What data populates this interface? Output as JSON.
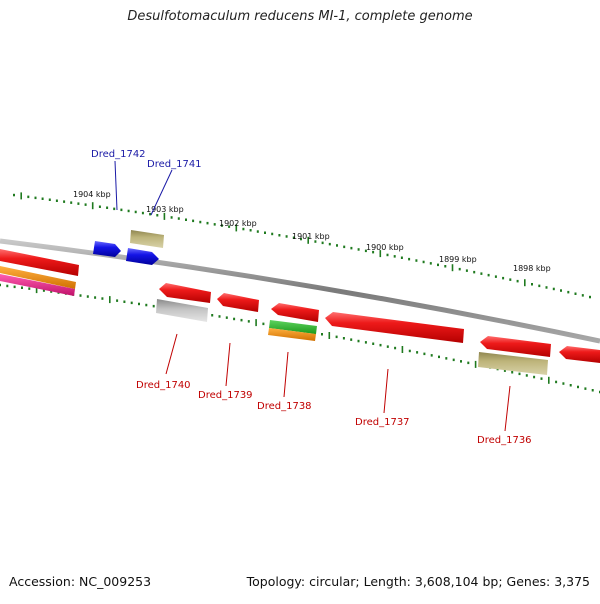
{
  "title": "Desulfotomaculum reducens MI-1, complete genome",
  "footer": {
    "accession": "Accession: NC_009253",
    "stats": "Topology: circular; Length: 3,608,104 bp; Genes: 3,375"
  },
  "scale_labels": [
    "1904 kbp",
    "1903 kbp",
    "1902 kbp",
    "1901 kbp",
    "1900 kbp",
    "1899 kbp",
    "1898 kbp"
  ],
  "colors": {
    "backbone": "#8a8a8a",
    "tick": "#1f7a1f",
    "plus_label": "#1a1aa6",
    "minus_label": "#c00000",
    "red": "#e8161b",
    "blue": "#1010e0",
    "olive": "#b5ad74",
    "gray": "#bdbdbd",
    "green": "#33bb33",
    "orange": "#f08c00",
    "magenta": "#e8208a"
  },
  "genes_top": [
    {
      "label": "Dred_1742"
    },
    {
      "label": "Dred_1741"
    }
  ],
  "genes_bottom": [
    {
      "label": "Dred_1740"
    },
    {
      "label": "Dred_1739"
    },
    {
      "label": "Dred_1738"
    },
    {
      "label": "Dred_1737"
    },
    {
      "label": "Dred_1736"
    }
  ]
}
